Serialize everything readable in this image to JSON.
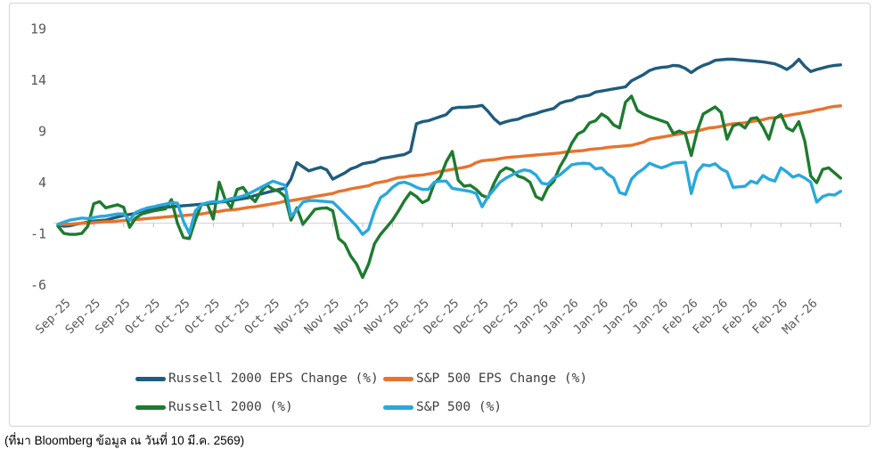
{
  "chart_data": {
    "type": "line",
    "title": "",
    "xlabel": "",
    "ylabel": "",
    "ylim": [
      -6,
      19
    ],
    "y_ticks": [
      19,
      14,
      9,
      4,
      -1,
      -6
    ],
    "grid": "zero-baseline-only",
    "legend_position": "bottom",
    "x_tick_labels": [
      "Sep-25",
      "Sep-25",
      "Sep-25",
      "Oct-25",
      "Oct-25",
      "Oct-25",
      "Oct-25",
      "Oct-25",
      "Nov-25",
      "Nov-25",
      "Nov-25",
      "Nov-25",
      "Dec-25",
      "Dec-25",
      "Dec-25",
      "Dec-25",
      "Jan-26",
      "Jan-26",
      "Jan-26",
      "Jan-26",
      "Jan-26",
      "Feb-26",
      "Feb-26",
      "Feb-26",
      "Feb-26",
      "Mar-26",
      ""
    ],
    "axis_colors": {
      "baseline": "#D9D9D9",
      "tick": "#BFBFBF",
      "label_text": "#595959",
      "border": "#D9D9D9"
    },
    "series": [
      {
        "id": "russell-2000-eps-change",
        "name": "Russell 2000 EPS Change (%)",
        "color": "#1F5C7D",
        "values": [
          -0.2,
          -0.3,
          -0.25,
          -0.1,
          0.0,
          0.1,
          0.2,
          0.25,
          0.3,
          0.45,
          0.6,
          0.75,
          0.85,
          0.95,
          1.2,
          1.3,
          1.4,
          1.5,
          1.55,
          1.6,
          1.65,
          1.7,
          1.75,
          1.8,
          1.85,
          1.9,
          1.95,
          2.05,
          2.1,
          2.2,
          2.3,
          2.4,
          2.5,
          2.7,
          2.85,
          3.0,
          3.15,
          3.3,
          3.4,
          4.3,
          5.9,
          5.5,
          5.1,
          5.3,
          5.45,
          5.2,
          4.3,
          4.6,
          4.9,
          5.3,
          5.5,
          5.8,
          5.9,
          6.0,
          6.3,
          6.4,
          6.5,
          6.6,
          6.7,
          7.0,
          9.7,
          9.9,
          10.0,
          10.2,
          10.4,
          10.6,
          11.2,
          11.3,
          11.3,
          11.35,
          11.4,
          11.5,
          10.9,
          10.2,
          9.7,
          9.9,
          10.05,
          10.15,
          10.4,
          10.55,
          10.7,
          10.9,
          11.05,
          11.2,
          11.7,
          11.9,
          12.0,
          12.3,
          12.4,
          12.5,
          12.8,
          12.9,
          13.0,
          13.1,
          13.2,
          13.3,
          13.9,
          14.2,
          14.5,
          14.9,
          15.1,
          15.2,
          15.25,
          15.4,
          15.35,
          15.1,
          14.7,
          15.1,
          15.4,
          15.6,
          15.9,
          15.95,
          16.0,
          16.0,
          15.95,
          15.9,
          15.85,
          15.8,
          15.75,
          15.65,
          15.55,
          15.3,
          15.0,
          15.4,
          16.0,
          15.3,
          14.8,
          15.0,
          15.15,
          15.3,
          15.4,
          15.45
        ]
      },
      {
        "id": "sp-500-eps-change",
        "name": "S&P 500 EPS Change (%)",
        "color": "#E8732C",
        "values": [
          -0.15,
          -0.1,
          -0.1,
          -0.05,
          0.0,
          0.0,
          0.05,
          0.1,
          0.15,
          0.15,
          0.2,
          0.25,
          0.3,
          0.35,
          0.4,
          0.45,
          0.5,
          0.55,
          0.6,
          0.65,
          0.7,
          0.75,
          0.8,
          0.85,
          0.9,
          1.0,
          1.1,
          1.15,
          1.25,
          1.3,
          1.35,
          1.45,
          1.55,
          1.6,
          1.7,
          1.8,
          1.9,
          2.0,
          2.15,
          2.2,
          2.3,
          2.4,
          2.5,
          2.6,
          2.7,
          2.8,
          2.9,
          3.1,
          3.2,
          3.35,
          3.45,
          3.55,
          3.65,
          3.9,
          4.0,
          4.1,
          4.3,
          4.45,
          4.5,
          4.6,
          4.65,
          4.7,
          4.8,
          4.9,
          5.05,
          5.15,
          5.25,
          5.35,
          5.45,
          5.6,
          5.9,
          6.1,
          6.15,
          6.2,
          6.3,
          6.4,
          6.45,
          6.5,
          6.55,
          6.6,
          6.65,
          6.7,
          6.75,
          6.8,
          6.85,
          6.95,
          7.0,
          7.05,
          7.1,
          7.2,
          7.25,
          7.3,
          7.4,
          7.45,
          7.5,
          7.55,
          7.6,
          7.75,
          7.9,
          8.2,
          8.3,
          8.4,
          8.5,
          8.6,
          8.7,
          8.8,
          8.9,
          9.0,
          9.15,
          9.3,
          9.35,
          9.45,
          9.6,
          9.7,
          9.75,
          9.8,
          9.9,
          10.0,
          10.1,
          10.25,
          10.3,
          10.4,
          10.5,
          10.6,
          10.7,
          10.8,
          10.9,
          11.05,
          11.15,
          11.3,
          11.4,
          11.45
        ]
      },
      {
        "id": "russell-2000",
        "name": "Russell 2000 (%)",
        "color": "#1E7B2F",
        "values": [
          -0.3,
          -1.0,
          -1.1,
          -1.1,
          -1.0,
          -0.3,
          1.9,
          2.1,
          1.5,
          1.65,
          1.8,
          1.55,
          -0.4,
          0.5,
          0.9,
          1.05,
          1.2,
          1.3,
          1.4,
          2.3,
          0.0,
          -1.4,
          -1.5,
          0.3,
          1.8,
          1.9,
          0.4,
          4.0,
          2.3,
          1.5,
          3.3,
          3.5,
          2.65,
          2.1,
          3.1,
          3.7,
          3.3,
          3.1,
          2.6,
          0.3,
          1.5,
          -0.1,
          0.6,
          1.35,
          1.45,
          1.5,
          1.2,
          -1.5,
          -2.0,
          -3.2,
          -4.0,
          -5.3,
          -4.0,
          -2.0,
          -1.1,
          -0.4,
          0.3,
          1.2,
          2.2,
          3.0,
          2.6,
          2.0,
          2.3,
          3.9,
          4.5,
          6.0,
          7.0,
          4.2,
          3.6,
          3.7,
          3.3,
          2.7,
          2.5,
          3.9,
          5.0,
          5.4,
          5.2,
          4.6,
          4.4,
          4.0,
          2.6,
          2.3,
          3.5,
          4.1,
          5.5,
          6.5,
          7.8,
          8.7,
          9.0,
          9.8,
          10.0,
          10.65,
          10.3,
          9.6,
          9.3,
          11.8,
          12.4,
          11.0,
          10.65,
          10.4,
          10.2,
          10.0,
          9.8,
          8.75,
          9.0,
          8.75,
          6.6,
          9.0,
          10.65,
          11.0,
          11.35,
          10.8,
          8.2,
          9.5,
          9.7,
          9.3,
          10.2,
          10.3,
          9.4,
          8.2,
          10.2,
          10.6,
          9.3,
          9.0,
          9.9,
          8.0,
          4.6,
          3.95,
          5.25,
          5.4,
          4.9,
          4.4
        ]
      },
      {
        "id": "sp-500",
        "name": "S&P 500 (%)",
        "color": "#29A8DC",
        "values": [
          -0.1,
          0.1,
          0.3,
          0.4,
          0.5,
          0.45,
          0.55,
          0.65,
          0.7,
          0.8,
          0.9,
          0.9,
          0.3,
          1.05,
          1.3,
          1.5,
          1.6,
          1.75,
          1.85,
          2.0,
          1.95,
          0.2,
          -1.0,
          1.2,
          1.8,
          2.0,
          2.1,
          2.05,
          2.2,
          2.4,
          2.5,
          2.65,
          2.9,
          3.2,
          3.5,
          3.8,
          4.1,
          3.9,
          3.7,
          0.65,
          1.3,
          2.05,
          2.2,
          2.2,
          2.15,
          2.1,
          2.05,
          1.5,
          0.9,
          0.3,
          -0.3,
          -1.1,
          -0.6,
          1.2,
          2.5,
          2.9,
          3.5,
          3.9,
          4.0,
          3.8,
          3.5,
          3.3,
          3.3,
          4.0,
          4.1,
          4.1,
          3.4,
          3.3,
          3.2,
          3.1,
          2.9,
          1.6,
          2.6,
          3.3,
          4.0,
          4.4,
          4.7,
          5.0,
          5.2,
          5.1,
          4.7,
          3.9,
          3.8,
          4.4,
          4.7,
          5.2,
          5.7,
          5.8,
          5.85,
          5.8,
          5.3,
          5.4,
          4.8,
          4.4,
          3.0,
          2.8,
          4.3,
          4.9,
          5.3,
          5.85,
          5.6,
          5.4,
          5.6,
          5.85,
          5.9,
          5.95,
          2.9,
          5.0,
          5.7,
          5.6,
          5.8,
          5.3,
          5.0,
          3.5,
          3.55,
          3.6,
          4.1,
          3.9,
          4.65,
          4.3,
          4.1,
          5.4,
          5.0,
          4.5,
          4.7,
          4.4,
          4.0,
          2.05,
          2.6,
          2.8,
          2.75,
          3.1
        ]
      }
    ],
    "source_note": "(ที่มา Bloomberg ข้อมูล ณ วันที่ 10 มี.ค. 2569)"
  }
}
